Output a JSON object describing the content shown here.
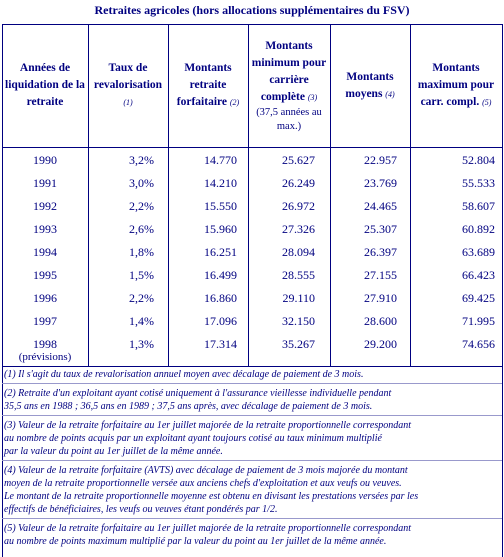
{
  "title": "Retraites agricoles (hors allocations supplémentaires du FSV)",
  "table": {
    "columns": [
      {
        "label": "Années de liquidation de la retraite"
      },
      {
        "label": "Taux de revalorisation",
        "note": "(1)"
      },
      {
        "label": "Montants retraite forfaitaire",
        "note": "(2)"
      },
      {
        "label": "Montants minimum pour carrière complète",
        "note": "(3)",
        "sub": "(37,5 années au max.)"
      },
      {
        "label": "Montants moyens",
        "note": "(4)"
      },
      {
        "label": "Montants maximum pour carr. compl.",
        "note": "(5)"
      }
    ],
    "rows": [
      [
        "1990",
        "3,2%",
        "14.770",
        "25.627",
        "22.957",
        "52.804"
      ],
      [
        "1991",
        "3,0%",
        "14.210",
        "26.249",
        "23.769",
        "55.533"
      ],
      [
        "1992",
        "2,2%",
        "15.550",
        "26.972",
        "24.465",
        "58.607"
      ],
      [
        "1993",
        "2,6%",
        "15.960",
        "27.326",
        "25.307",
        "60.892"
      ],
      [
        "1994",
        "1,8%",
        "16.251",
        "28.094",
        "26.397",
        "63.689"
      ],
      [
        "1995",
        "1,5%",
        "16.499",
        "28.555",
        "27.155",
        "66.423"
      ],
      [
        "1996",
        "2,2%",
        "16.860",
        "29.110",
        "27.910",
        "69.425"
      ],
      [
        "1997",
        "1,4%",
        "17.096",
        "32.150",
        "28.600",
        "71.995"
      ],
      [
        "1998",
        "1,3%",
        "17.314",
        "35.267",
        "29.200",
        "74.656"
      ]
    ],
    "forecast_note": "(prévisions)"
  },
  "notes": [
    [
      "(1) Il s'agit du taux de revalorisation annuel moyen avec décalage de paiement de 3 mois."
    ],
    [
      "(2) Retraite d'un exploitant ayant cotisé uniquement à l'assurance vieillesse individuelle pendant",
      "35,5 ans en 1988 ; 36,5 ans en 1989 ; 37,5 ans après, avec décalage de paiement de 3 mois."
    ],
    [
      "(3) Valeur de la retraite forfaitaire au 1er juillet majorée de la retraite proportionnelle correspondant",
      "au nombre de points acquis par un exploitant ayant toujours cotisé au taux minimum multiplié",
      "par la valeur du point au 1er juillet de la même année."
    ],
    [
      "(4) Valeur de la retraite forfaitaire (AVTS) avec décalage de paiement de 3 mois majorée du montant",
      "moyen de la retraite proportionnelle versée aux anciens chefs d'exploitation et aux veufs ou veuves.",
      "Le montant de la retraite proportionnelle moyenne est obtenu en divisant les prestations versées par les",
      "effectifs de bénéficiaires, les veufs ou veuves étant pondérés par 1/2."
    ],
    [
      "(5) Valeur de la retraite forfaitaire au 1er juillet majorée de la retraite proportionnelle correspondant",
      "au nombre de points maximum multiplié par la valeur du point au 1er juillet de la même année."
    ]
  ]
}
